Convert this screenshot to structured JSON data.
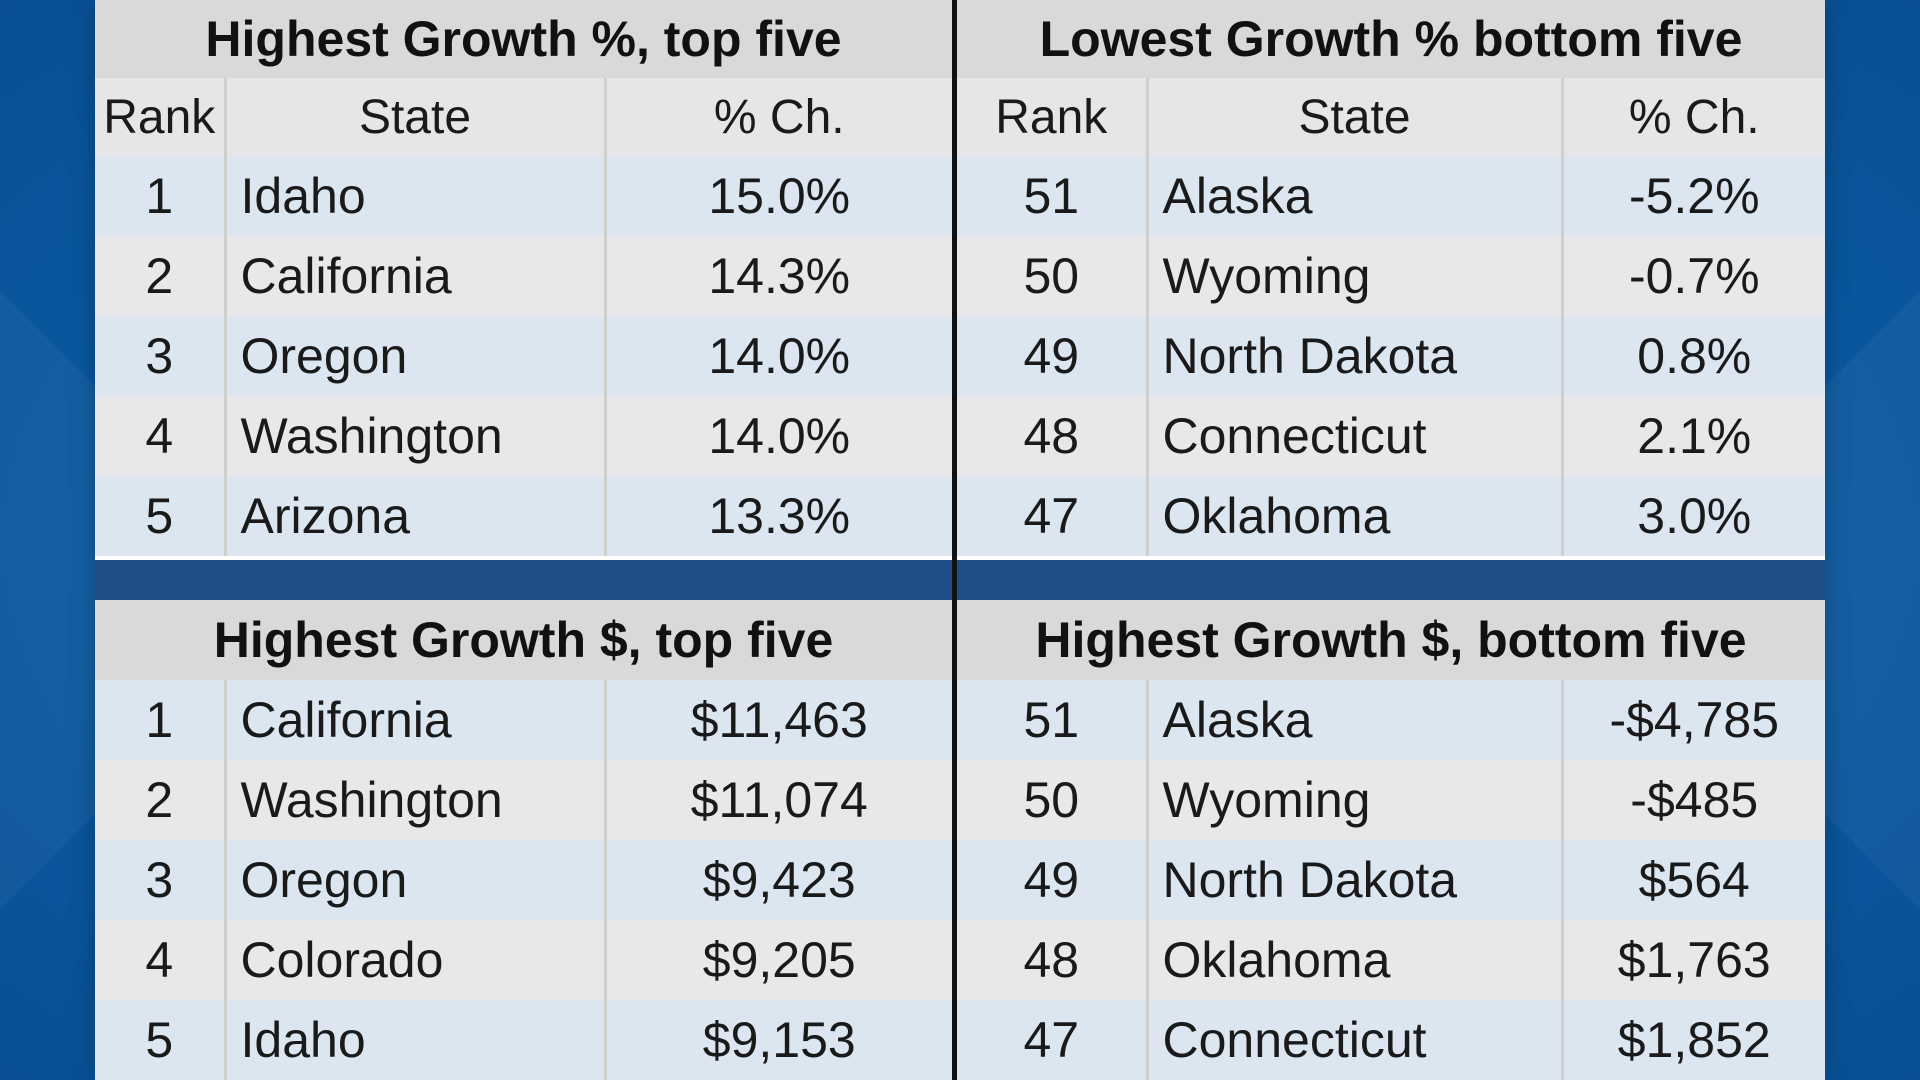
{
  "tables": {
    "top_left": {
      "title": "Highest Growth %, top five",
      "headers": [
        "Rank",
        "State",
        "% Ch."
      ],
      "rows": [
        {
          "rank": "1",
          "state": "Idaho",
          "value": "15.0%"
        },
        {
          "rank": "2",
          "state": "California",
          "value": "14.3%"
        },
        {
          "rank": "3",
          "state": "Oregon",
          "value": "14.0%"
        },
        {
          "rank": "4",
          "state": "Washington",
          "value": "14.0%"
        },
        {
          "rank": "5",
          "state": "Arizona",
          "value": "13.3%"
        }
      ]
    },
    "top_right": {
      "title": "Lowest Growth % bottom five",
      "headers": [
        "Rank",
        "State",
        "% Ch."
      ],
      "rows": [
        {
          "rank": "51",
          "state": "Alaska",
          "value": "-5.2%"
        },
        {
          "rank": "50",
          "state": "Wyoming",
          "value": "-0.7%"
        },
        {
          "rank": "49",
          "state": "North Dakota",
          "value": "0.8%"
        },
        {
          "rank": "48",
          "state": "Connecticut",
          "value": "2.1%"
        },
        {
          "rank": "47",
          "state": "Oklahoma",
          "value": "3.0%"
        }
      ]
    },
    "bottom_left": {
      "title": "Highest Growth $, top five",
      "rows": [
        {
          "rank": "1",
          "state": "California",
          "value": "$11,463"
        },
        {
          "rank": "2",
          "state": "Washington",
          "value": "$11,074"
        },
        {
          "rank": "3",
          "state": "Oregon",
          "value": "$9,423"
        },
        {
          "rank": "4",
          "state": "Colorado",
          "value": "$9,205"
        },
        {
          "rank": "5",
          "state": "Idaho",
          "value": "$9,153"
        }
      ]
    },
    "bottom_right": {
      "title": "Highest Growth $, bottom five",
      "rows": [
        {
          "rank": "51",
          "state": "Alaska",
          "value": "-$4,785"
        },
        {
          "rank": "50",
          "state": "Wyoming",
          "value": "-$485"
        },
        {
          "rank": "49",
          "state": "North Dakota",
          "value": "$564"
        },
        {
          "rank": "48",
          "state": "Oklahoma",
          "value": "$1,763"
        },
        {
          "rank": "47",
          "state": "Connecticut",
          "value": "$1,852"
        }
      ]
    }
  },
  "colors": {
    "background_blue": "#0b5ea8",
    "separator_band": "#1f4e89",
    "title_gray": "#d9d9d9",
    "header_gray": "#e6e6e6",
    "row_blue": "#dbe6f1",
    "row_gray": "#e8e8e8"
  }
}
